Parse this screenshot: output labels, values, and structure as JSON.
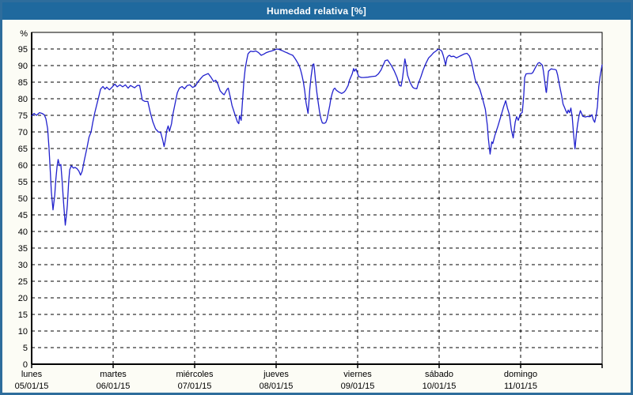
{
  "window": {
    "title": "Humedad relativa [%]",
    "titlebar_bg": "#1f699e",
    "titlebar_text_color": "#ffffff",
    "frame_border_color": "#2e6d9c"
  },
  "chart_data": {
    "type": "line",
    "title": "Humedad relativa [%]",
    "ylabel": "%",
    "ylim": [
      0,
      100
    ],
    "ytick_step": 5,
    "yticks": [
      0,
      5,
      10,
      15,
      20,
      25,
      30,
      35,
      40,
      45,
      50,
      55,
      60,
      65,
      70,
      75,
      80,
      85,
      90,
      95
    ],
    "xlim_hours": [
      0,
      168
    ],
    "grid": "dashed",
    "legend": "none",
    "plot_bg": "#ffffff",
    "grid_color": "#000000",
    "line_color": "#2121cd",
    "x_day_ticks": [
      {
        "hour": 0,
        "weekday": "lunes",
        "date": "05/01/15"
      },
      {
        "hour": 24,
        "weekday": "martes",
        "date": "06/01/15"
      },
      {
        "hour": 48,
        "weekday": "miércoles",
        "date": "07/01/15"
      },
      {
        "hour": 72,
        "weekday": "jueves",
        "date": "08/01/15"
      },
      {
        "hour": 96,
        "weekday": "viernes",
        "date": "09/01/15"
      },
      {
        "hour": 120,
        "weekday": "sábado",
        "date": "10/01/15"
      },
      {
        "hour": 144,
        "weekday": "domingo",
        "date": "11/01/15"
      }
    ],
    "series": [
      {
        "name": "Humedad relativa",
        "unit": "%",
        "points": [
          [
            0,
            74.8
          ],
          [
            0.7,
            75.6
          ],
          [
            1.4,
            75
          ],
          [
            2.3,
            75.8
          ],
          [
            3,
            75.6
          ],
          [
            3.7,
            75.2
          ],
          [
            4.2,
            74
          ],
          [
            4.7,
            71
          ],
          [
            5.1,
            65.3
          ],
          [
            5.5,
            58
          ],
          [
            5.8,
            52
          ],
          [
            6.3,
            46.5
          ],
          [
            6.8,
            51
          ],
          [
            7.1,
            55.5
          ],
          [
            7.5,
            59.8
          ],
          [
            7.8,
            61.7
          ],
          [
            8.2,
            59.8
          ],
          [
            8.6,
            60.2
          ],
          [
            9,
            55
          ],
          [
            9.3,
            50.2
          ],
          [
            9.7,
            44.7
          ],
          [
            9.9,
            41.9
          ],
          [
            10.3,
            45.4
          ],
          [
            10.5,
            47.9
          ],
          [
            10.9,
            55
          ],
          [
            11.2,
            58.6
          ],
          [
            11.7,
            59.8
          ],
          [
            12.3,
            59.1
          ],
          [
            12.8,
            59.3
          ],
          [
            13.4,
            58.9
          ],
          [
            13.9,
            58.2
          ],
          [
            14.4,
            57
          ],
          [
            14.9,
            58.2
          ],
          [
            15.5,
            61.4
          ],
          [
            16.3,
            65.3
          ],
          [
            16.9,
            68.4
          ],
          [
            17.5,
            70
          ],
          [
            18,
            72.9
          ],
          [
            18.6,
            75.8
          ],
          [
            19.3,
            78.7
          ],
          [
            19.8,
            80.8
          ],
          [
            20.3,
            82.9
          ],
          [
            21,
            83.7
          ],
          [
            21.6,
            82.9
          ],
          [
            22.1,
            83.5
          ],
          [
            22.9,
            82.7
          ],
          [
            23.7,
            83.5
          ],
          [
            24.5,
            84.4
          ],
          [
            25.2,
            83.6
          ],
          [
            26,
            84.2
          ],
          [
            26.8,
            83.6
          ],
          [
            27.6,
            84.2
          ],
          [
            28.4,
            83.2
          ],
          [
            29.1,
            84
          ],
          [
            30.3,
            83.3
          ],
          [
            31.1,
            84
          ],
          [
            31.8,
            84
          ],
          [
            32.6,
            79.6
          ],
          [
            33.4,
            79.2
          ],
          [
            34.2,
            79.2
          ],
          [
            34.9,
            76
          ],
          [
            35.7,
            73
          ],
          [
            36.5,
            70.9
          ],
          [
            37.3,
            70
          ],
          [
            38,
            69.8
          ],
          [
            38.6,
            67.5
          ],
          [
            39,
            65.6
          ],
          [
            39.4,
            67.7
          ],
          [
            39.8,
            70.5
          ],
          [
            40.2,
            71.8
          ],
          [
            40.6,
            70.2
          ],
          [
            41.2,
            72.5
          ],
          [
            41.5,
            74.8
          ],
          [
            42.3,
            78.8
          ],
          [
            42.9,
            81.8
          ],
          [
            43.5,
            83.2
          ],
          [
            44.3,
            83.7
          ],
          [
            45,
            83
          ],
          [
            45.8,
            84
          ],
          [
            46.6,
            84.2
          ],
          [
            47.4,
            83.4
          ],
          [
            48.2,
            83.8
          ],
          [
            48.9,
            85
          ],
          [
            49.7,
            86
          ],
          [
            50.5,
            86.9
          ],
          [
            51.3,
            87.3
          ],
          [
            52,
            87.6
          ],
          [
            52.8,
            86.5
          ],
          [
            53.6,
            85.2
          ],
          [
            54.2,
            85.6
          ],
          [
            54.8,
            84.5
          ],
          [
            55.5,
            82.4
          ],
          [
            56.3,
            81.5
          ],
          [
            56.7,
            81.2
          ],
          [
            57.5,
            82.8
          ],
          [
            57.9,
            83.2
          ],
          [
            58.6,
            80
          ],
          [
            59,
            78
          ],
          [
            59.8,
            75.5
          ],
          [
            60.6,
            73
          ],
          [
            61,
            72.5
          ],
          [
            61.2,
            74.9
          ],
          [
            61.7,
            73.5
          ],
          [
            62.5,
            85.2
          ],
          [
            62.9,
            89.1
          ],
          [
            63.3,
            91.5
          ],
          [
            63.7,
            93.5
          ],
          [
            64.1,
            94
          ],
          [
            64.5,
            94.3
          ],
          [
            65.2,
            94.2
          ],
          [
            66,
            94.4
          ],
          [
            66.8,
            93.9
          ],
          [
            67.6,
            93.1
          ],
          [
            68.3,
            93.4
          ],
          [
            69.1,
            93.9
          ],
          [
            69.9,
            94.2
          ],
          [
            70.7,
            94.4
          ],
          [
            71.5,
            94.7
          ],
          [
            72.2,
            95
          ],
          [
            73,
            94.8
          ],
          [
            73.8,
            94.5
          ],
          [
            74.6,
            94.1
          ],
          [
            75.3,
            93.8
          ],
          [
            76.1,
            93.4
          ],
          [
            76.9,
            93.1
          ],
          [
            77.7,
            91.9
          ],
          [
            78.4,
            90.7
          ],
          [
            78.8,
            89.9
          ],
          [
            79.2,
            88.7
          ],
          [
            79.6,
            87.1
          ],
          [
            80,
            85.2
          ],
          [
            80.4,
            82.4
          ],
          [
            80.8,
            78.8
          ],
          [
            81.4,
            75.6
          ],
          [
            81.7,
            79.6
          ],
          [
            81.9,
            82.8
          ],
          [
            82.3,
            86.7
          ],
          [
            82.8,
            90.3
          ],
          [
            83.1,
            90.5
          ],
          [
            83.3,
            88.7
          ],
          [
            83.6,
            85.4
          ],
          [
            84,
            81.8
          ],
          [
            84.4,
            78.8
          ],
          [
            84.8,
            76
          ],
          [
            85.2,
            73.9
          ],
          [
            85.6,
            72.7
          ],
          [
            86.2,
            72.6
          ],
          [
            86.6,
            72.8
          ],
          [
            87,
            73.9
          ],
          [
            87.4,
            76
          ],
          [
            87.8,
            78
          ],
          [
            88.1,
            80
          ],
          [
            88.5,
            81.6
          ],
          [
            88.9,
            82.8
          ],
          [
            89.3,
            83.2
          ],
          [
            89.7,
            82.6
          ],
          [
            90.5,
            82
          ],
          [
            91.3,
            81.6
          ],
          [
            92,
            82
          ],
          [
            92.4,
            82.5
          ],
          [
            93.2,
            84
          ],
          [
            93.6,
            85.6
          ],
          [
            94.4,
            87.5
          ],
          [
            94.8,
            89.1
          ],
          [
            95.1,
            88.3
          ],
          [
            95.5,
            89
          ],
          [
            96.3,
            86.7
          ],
          [
            97.1,
            86.4
          ],
          [
            97.8,
            86.4
          ],
          [
            99,
            86.5
          ],
          [
            100.2,
            86.7
          ],
          [
            101.3,
            86.8
          ],
          [
            102.1,
            87.5
          ],
          [
            102.9,
            88.7
          ],
          [
            103.7,
            90.5
          ],
          [
            104.1,
            91.5
          ],
          [
            104.8,
            91.7
          ],
          [
            105.6,
            90.5
          ],
          [
            106,
            89.9
          ],
          [
            106.8,
            88.3
          ],
          [
            107.6,
            86.4
          ],
          [
            108.3,
            84
          ],
          [
            108.8,
            83.8
          ],
          [
            109.2,
            86
          ],
          [
            109.9,
            92
          ],
          [
            110.3,
            90
          ],
          [
            110.7,
            87.1
          ],
          [
            111.5,
            84.8
          ],
          [
            112.2,
            83.5
          ],
          [
            112.6,
            83.2
          ],
          [
            113.4,
            83
          ],
          [
            113.8,
            84.4
          ],
          [
            114.6,
            86.5
          ],
          [
            115.3,
            88.7
          ],
          [
            116.1,
            90.7
          ],
          [
            116.9,
            92.3
          ],
          [
            117.7,
            93.1
          ],
          [
            118.4,
            93.9
          ],
          [
            119.2,
            94.5
          ],
          [
            119.7,
            94.9
          ],
          [
            120.4,
            94.7
          ],
          [
            120.8,
            94.3
          ],
          [
            121.2,
            93.1
          ],
          [
            121.5,
            91.9
          ],
          [
            121.9,
            90.2
          ],
          [
            122.3,
            92.3
          ],
          [
            122.7,
            92.9
          ],
          [
            123.1,
            93.1
          ],
          [
            123.5,
            92.7
          ],
          [
            124.3,
            92.8
          ],
          [
            125.1,
            92.3
          ],
          [
            125.8,
            92.7
          ],
          [
            126.6,
            93.1
          ],
          [
            127.4,
            93.5
          ],
          [
            128.2,
            93.7
          ],
          [
            128.9,
            92.9
          ],
          [
            129.3,
            91.9
          ],
          [
            129.7,
            90.3
          ],
          [
            130.1,
            88.3
          ],
          [
            130.5,
            86.2
          ],
          [
            130.9,
            84.8
          ],
          [
            131.3,
            84.4
          ],
          [
            132,
            82.8
          ],
          [
            132.8,
            80
          ],
          [
            133.6,
            76.8
          ],
          [
            134.2,
            72
          ],
          [
            134.5,
            68
          ],
          [
            135,
            63.3
          ],
          [
            135.5,
            67
          ],
          [
            135.8,
            66.5
          ],
          [
            136.4,
            68.9
          ],
          [
            137.3,
            71.7
          ],
          [
            138.2,
            74.8
          ],
          [
            139,
            77.6
          ],
          [
            139.6,
            79.4
          ],
          [
            140.1,
            77.2
          ],
          [
            140.7,
            75.2
          ],
          [
            141.3,
            70.5
          ],
          [
            141.8,
            68.2
          ],
          [
            142.4,
            72.9
          ],
          [
            142.8,
            74.6
          ],
          [
            143.3,
            73.5
          ],
          [
            143.9,
            75.4
          ],
          [
            144.5,
            75.9
          ],
          [
            144.9,
            80.9
          ],
          [
            145.2,
            86.4
          ],
          [
            145.6,
            87.5
          ],
          [
            146.4,
            87.6
          ],
          [
            147.2,
            87.6
          ],
          [
            147.6,
            87.9
          ],
          [
            148.4,
            89.5
          ],
          [
            149.1,
            90.7
          ],
          [
            149.5,
            90.9
          ],
          [
            150,
            90.5
          ],
          [
            150.4,
            90.1
          ],
          [
            150.7,
            88.3
          ],
          [
            151.5,
            82
          ],
          [
            151.6,
            81.9
          ],
          [
            152,
            86.2
          ],
          [
            152.2,
            88.3
          ],
          [
            152.6,
            88.7
          ],
          [
            153,
            89
          ],
          [
            153.5,
            88.9
          ],
          [
            154.2,
            88.8
          ],
          [
            154.5,
            88.6
          ],
          [
            154.9,
            87.1
          ],
          [
            155.3,
            84.8
          ],
          [
            155.7,
            82.8
          ],
          [
            156.1,
            80.8
          ],
          [
            156.5,
            78.4
          ],
          [
            156.9,
            77.4
          ],
          [
            157.3,
            76.4
          ],
          [
            157.7,
            75.6
          ],
          [
            158,
            76.6
          ],
          [
            158.4,
            75.8
          ],
          [
            158.8,
            77.2
          ],
          [
            159.2,
            74.5
          ],
          [
            159.6,
            69.3
          ],
          [
            160,
            64.9
          ],
          [
            160.4,
            69.3
          ],
          [
            160.8,
            72.5
          ],
          [
            161.2,
            74.9
          ],
          [
            161.6,
            76.4
          ],
          [
            162,
            75.4
          ],
          [
            162.3,
            74.7
          ],
          [
            163.1,
            74.5
          ],
          [
            163.6,
            74.7
          ],
          [
            164.3,
            74.6
          ],
          [
            164.6,
            74.7
          ],
          [
            165,
            75.2
          ],
          [
            165.4,
            73.7
          ],
          [
            165.8,
            72.9
          ],
          [
            166.2,
            74.8
          ],
          [
            166.6,
            77.6
          ],
          [
            167,
            83.6
          ],
          [
            167.4,
            86.7
          ],
          [
            167.8,
            89.1
          ],
          [
            168,
            90.2
          ]
        ]
      }
    ]
  }
}
